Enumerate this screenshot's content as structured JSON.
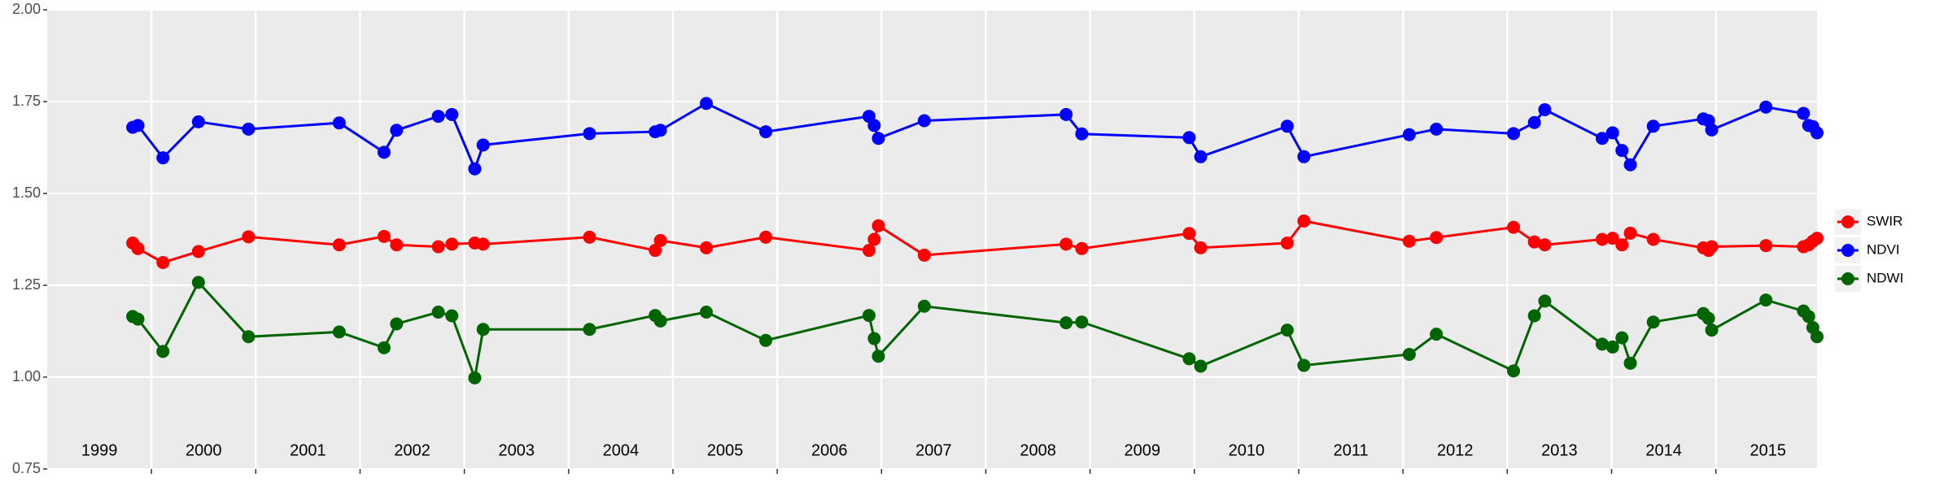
{
  "chart_data": {
    "type": "line",
    "x": [
      1999.82,
      1999.87,
      2000.11,
      2000.45,
      2000.93,
      2001.8,
      2002.23,
      2002.35,
      2002.75,
      2002.88,
      2003.1,
      2003.18,
      2004.2,
      2004.83,
      2004.88,
      2005.32,
      2005.89,
      2006.88,
      2006.93,
      2006.97,
      2007.41,
      2008.77,
      2008.92,
      2009.95,
      2010.06,
      2010.89,
      2011.05,
      2012.06,
      2012.32,
      2013.06,
      2013.26,
      2013.36,
      2013.91,
      2014.01,
      2014.1,
      2014.18,
      2014.4,
      2014.88,
      2014.93,
      2014.96,
      2015.48,
      2015.84,
      2015.89,
      2015.93,
      2015.97
    ],
    "series": [
      {
        "name": "SWIR",
        "color": "#ff0000",
        "values": [
          1.365,
          1.35,
          1.312,
          1.342,
          1.382,
          1.36,
          1.383,
          1.36,
          1.355,
          1.362,
          1.365,
          1.362,
          1.381,
          1.345,
          1.372,
          1.352,
          1.381,
          1.345,
          1.375,
          1.412,
          1.332,
          1.362,
          1.35,
          1.391,
          1.352,
          1.365,
          1.425,
          1.37,
          1.38,
          1.408,
          1.368,
          1.36,
          1.375,
          1.378,
          1.36,
          1.392,
          1.375,
          1.352,
          1.345,
          1.355,
          1.358,
          1.355,
          1.36,
          1.37,
          1.378
        ]
      },
      {
        "name": "NDVI",
        "color": "#0000ff",
        "values": [
          1.68,
          1.685,
          1.597,
          1.695,
          1.675,
          1.692,
          1.612,
          1.672,
          1.71,
          1.715,
          1.567,
          1.632,
          1.663,
          1.668,
          1.672,
          1.745,
          1.668,
          1.71,
          1.685,
          1.65,
          1.698,
          1.715,
          1.662,
          1.652,
          1.6,
          1.683,
          1.6,
          1.66,
          1.675,
          1.663,
          1.693,
          1.728,
          1.65,
          1.665,
          1.617,
          1.578,
          1.683,
          1.703,
          1.698,
          1.673,
          1.735,
          1.718,
          1.685,
          1.682,
          1.665
        ]
      },
      {
        "name": "NDWI",
        "color": "#006400",
        "values": [
          1.165,
          1.158,
          1.07,
          1.258,
          1.11,
          1.123,
          1.08,
          1.145,
          1.177,
          1.167,
          0.998,
          1.13,
          1.13,
          1.168,
          1.153,
          1.177,
          1.1,
          1.168,
          1.105,
          1.057,
          1.193,
          1.148,
          1.15,
          1.05,
          1.03,
          1.128,
          1.032,
          1.062,
          1.117,
          1.017,
          1.167,
          1.207,
          1.09,
          1.082,
          1.107,
          1.038,
          1.15,
          1.173,
          1.16,
          1.128,
          1.21,
          1.18,
          1.165,
          1.135,
          1.11
        ]
      }
    ],
    "xlim": [
      1999,
      2015.97
    ],
    "xticks": [
      2000,
      2001,
      2002,
      2003,
      2004,
      2005,
      2006,
      2007,
      2008,
      2009,
      2010,
      2011,
      2012,
      2013,
      2014,
      2015
    ],
    "year_labels": [
      "1999",
      "2000",
      "2001",
      "2002",
      "2003",
      "2004",
      "2005",
      "2006",
      "2007",
      "2008",
      "2009",
      "2010",
      "2011",
      "2012",
      "2013",
      "2014",
      "2015"
    ],
    "ylim": [
      0.75,
      2.0
    ],
    "yticks": [
      0.75,
      {
        "value": 1.0,
        "label": "1.00"
      },
      1.25,
      {
        "value": 1.5,
        "label": "1.50"
      },
      1.75,
      {
        "value": 2.0,
        "label": "2.00"
      }
    ],
    "grid": true,
    "legend": "right"
  }
}
